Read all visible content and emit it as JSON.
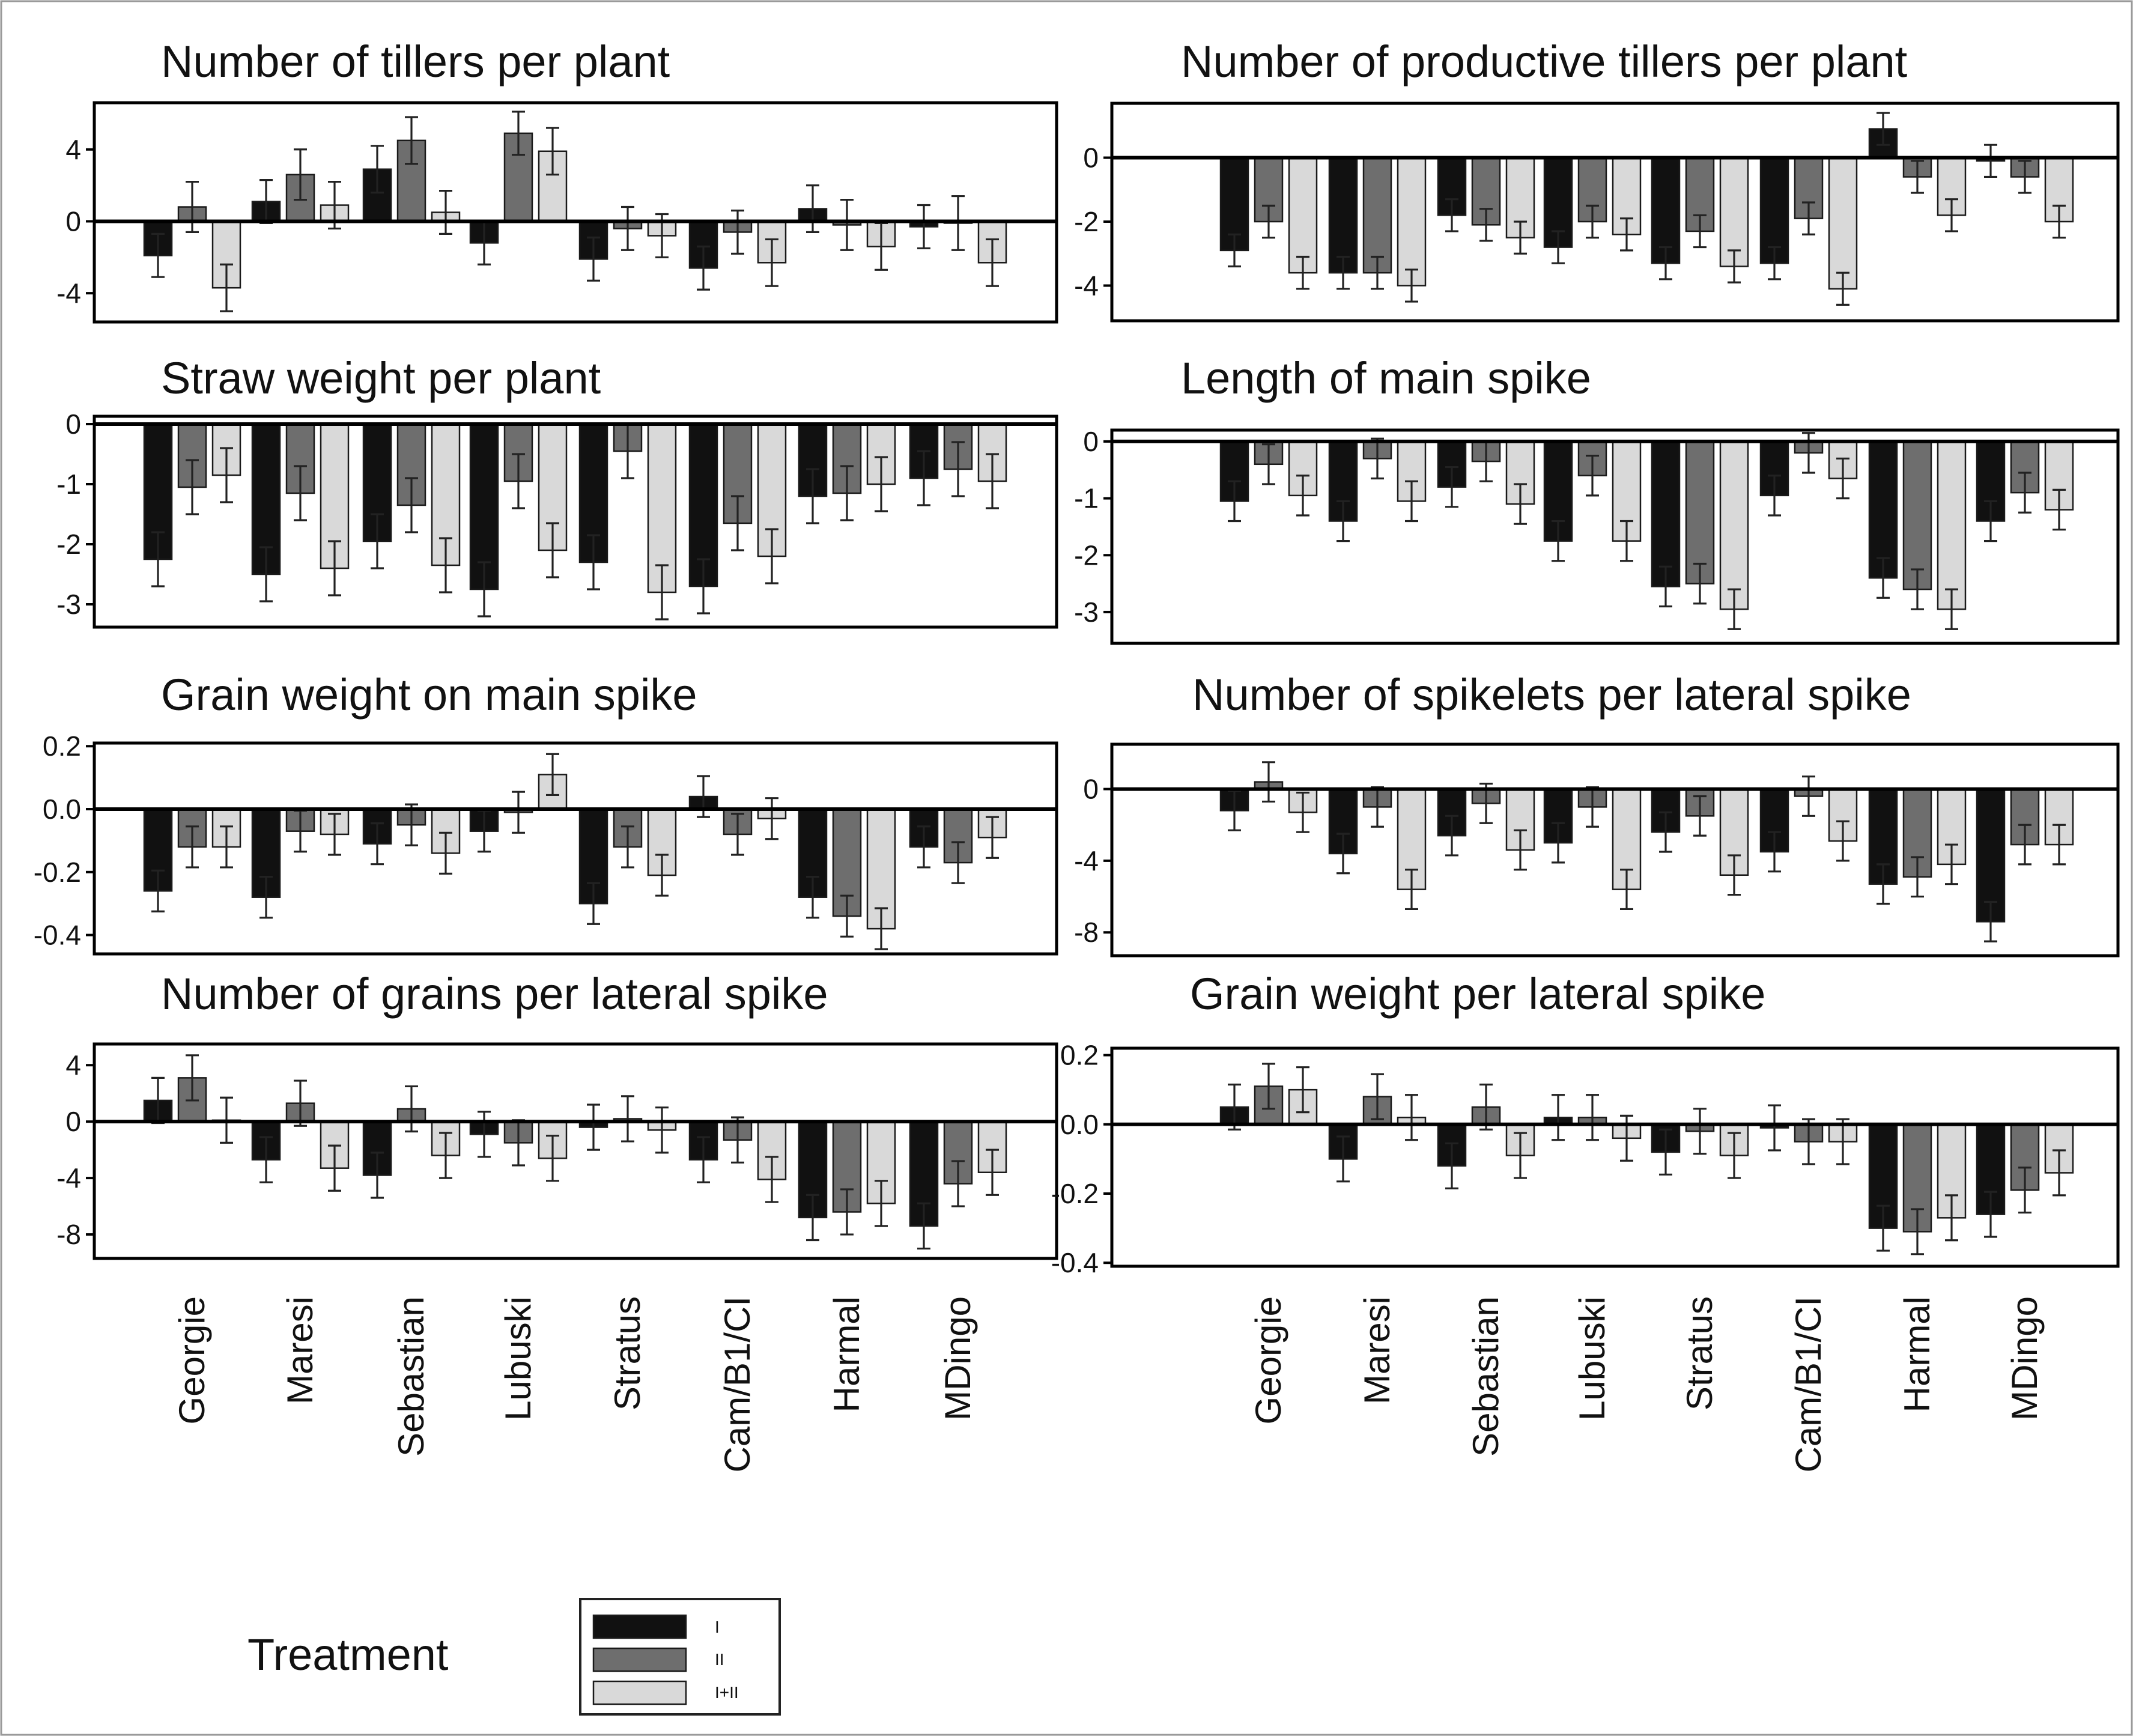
{
  "legend": {
    "title": "Treatment",
    "series": [
      {
        "name": "I",
        "color": "#111111"
      },
      {
        "name": "II",
        "color": "#6e6e6e"
      },
      {
        "name": "I+II",
        "color": "#d9d9d9"
      }
    ]
  },
  "chart_data": [
    {
      "type": "bar",
      "title": "Number of tillers per plant",
      "categories": [
        "Georgie",
        "Maresi",
        "Sebastian",
        "Lubuski",
        "Stratus",
        "Cam/B1/CI",
        "Harmal",
        "MDingo"
      ],
      "ylim": [
        -5.6,
        6.6
      ],
      "yticks": [
        4,
        0,
        -4
      ],
      "tick_labels": [
        "4",
        "0",
        "-4"
      ],
      "series": [
        {
          "name": "I",
          "values": [
            -1.9,
            1.1,
            2.9,
            -1.2,
            -2.1,
            -2.6,
            0.7,
            -0.3
          ],
          "errors": [
            1.2,
            1.2,
            1.3,
            1.2,
            1.2,
            1.2,
            1.3,
            1.2
          ]
        },
        {
          "name": "II",
          "values": [
            0.8,
            2.6,
            4.5,
            4.9,
            -0.4,
            -0.6,
            -0.2,
            -0.1
          ],
          "errors": [
            1.4,
            1.4,
            1.3,
            1.2,
            1.2,
            1.2,
            1.4,
            1.5
          ]
        },
        {
          "name": "I+II",
          "values": [
            -3.7,
            0.9,
            0.5,
            3.9,
            -0.8,
            -2.3,
            -1.4,
            -2.3
          ],
          "errors": [
            1.3,
            1.3,
            1.2,
            1.3,
            1.2,
            1.3,
            1.3,
            1.3
          ]
        }
      ]
    },
    {
      "type": "bar",
      "title": "Number of productive tillers per plant",
      "categories": [
        "Georgie",
        "Maresi",
        "Sebastian",
        "Lubuski",
        "Stratus",
        "Cam/B1/CI",
        "Harmal",
        "MDingo"
      ],
      "ylim": [
        -5.1,
        1.7
      ],
      "yticks": [
        0,
        -2,
        -4
      ],
      "tick_labels": [
        "0",
        "-2",
        "-4"
      ],
      "series": [
        {
          "name": "I",
          "values": [
            -2.9,
            -3.6,
            -1.8,
            -2.8,
            -3.3,
            -3.3,
            0.9,
            -0.1
          ],
          "errors": [
            0.5,
            0.5,
            0.5,
            0.5,
            0.5,
            0.5,
            0.5,
            0.5
          ]
        },
        {
          "name": "II",
          "values": [
            -2.0,
            -3.6,
            -2.1,
            -2.0,
            -2.3,
            -1.9,
            -0.6,
            -0.6
          ],
          "errors": [
            0.5,
            0.5,
            0.5,
            0.5,
            0.5,
            0.5,
            0.5,
            0.5
          ]
        },
        {
          "name": "I+II",
          "values": [
            -3.6,
            -4.0,
            -2.5,
            -2.4,
            -3.4,
            -4.1,
            -1.8,
            -2.0
          ],
          "errors": [
            0.5,
            0.5,
            0.5,
            0.5,
            0.5,
            0.5,
            0.5,
            0.5
          ]
        }
      ]
    },
    {
      "type": "bar",
      "title": "Straw weight per plant",
      "categories": [
        "Georgie",
        "Maresi",
        "Sebastian",
        "Lubuski",
        "Stratus",
        "Cam/B1/CI",
        "Harmal",
        "MDingo"
      ],
      "ylim": [
        -3.38,
        0.13
      ],
      "yticks": [
        0,
        -1,
        -2,
        -3
      ],
      "tick_labels": [
        "0",
        "-1",
        "-2",
        "-3"
      ],
      "series": [
        {
          "name": "I",
          "values": [
            -2.25,
            -2.5,
            -1.95,
            -2.75,
            -2.3,
            -2.7,
            -1.2,
            -0.9
          ],
          "errors": [
            0.45,
            0.45,
            0.45,
            0.45,
            0.45,
            0.45,
            0.45,
            0.45
          ]
        },
        {
          "name": "II",
          "values": [
            -1.05,
            -1.15,
            -1.35,
            -0.95,
            -0.45,
            -1.65,
            -1.15,
            -0.75
          ],
          "errors": [
            0.45,
            0.45,
            0.45,
            0.45,
            0.45,
            0.45,
            0.45,
            0.45
          ]
        },
        {
          "name": "I+II",
          "values": [
            -0.85,
            -2.4,
            -2.35,
            -2.1,
            -2.8,
            -2.2,
            -1.0,
            -0.95
          ],
          "errors": [
            0.45,
            0.45,
            0.45,
            0.45,
            0.45,
            0.45,
            0.45,
            0.45
          ]
        }
      ]
    },
    {
      "type": "bar",
      "title": "Length of main spike",
      "categories": [
        "Georgie",
        "Maresi",
        "Sebastian",
        "Lubuski",
        "Stratus",
        "Cam/B1/CI",
        "Harmal",
        "MDingo"
      ],
      "ylim": [
        -3.55,
        0.2
      ],
      "yticks": [
        0,
        -1,
        -2,
        -3
      ],
      "tick_labels": [
        "0",
        "-1",
        "-2",
        "-3"
      ],
      "series": [
        {
          "name": "I",
          "values": [
            -1.05,
            -1.4,
            -0.8,
            -1.75,
            -2.55,
            -0.95,
            -2.4,
            -1.4
          ],
          "errors": [
            0.35,
            0.35,
            0.35,
            0.35,
            0.35,
            0.35,
            0.35,
            0.35
          ]
        },
        {
          "name": "II",
          "values": [
            -0.4,
            -0.3,
            -0.35,
            -0.6,
            -2.5,
            -0.2,
            -2.6,
            -0.9
          ],
          "errors": [
            0.35,
            0.35,
            0.35,
            0.35,
            0.35,
            0.35,
            0.35,
            0.35
          ]
        },
        {
          "name": "I+II",
          "values": [
            -0.95,
            -1.05,
            -1.1,
            -1.75,
            -2.95,
            -0.65,
            -2.95,
            -1.2
          ],
          "errors": [
            0.35,
            0.35,
            0.35,
            0.35,
            0.35,
            0.35,
            0.35,
            0.35
          ]
        }
      ]
    },
    {
      "type": "bar",
      "title": "Grain weight on main spike",
      "categories": [
        "Georgie",
        "Maresi",
        "Sebastian",
        "Lubuski",
        "Stratus",
        "Cam/B1/CI",
        "Harmal",
        "MDingo"
      ],
      "ylim": [
        -0.46,
        0.21
      ],
      "yticks": [
        0.2,
        0.0,
        -0.2,
        -0.4
      ],
      "tick_labels": [
        "0.2",
        "0.0",
        "-0.2",
        "-0.4"
      ],
      "series": [
        {
          "name": "I",
          "values": [
            -0.26,
            -0.28,
            -0.11,
            -0.07,
            -0.3,
            0.04,
            -0.28,
            -0.12
          ],
          "errors": [
            0.065,
            0.065,
            0.065,
            0.065,
            0.065,
            0.065,
            0.065,
            0.065
          ]
        },
        {
          "name": "II",
          "values": [
            -0.12,
            -0.07,
            -0.05,
            -0.01,
            -0.12,
            -0.08,
            -0.34,
            -0.17
          ],
          "errors": [
            0.065,
            0.065,
            0.065,
            0.065,
            0.065,
            0.065,
            0.065,
            0.065
          ]
        },
        {
          "name": "I+II",
          "values": [
            -0.12,
            -0.08,
            -0.14,
            0.11,
            -0.21,
            -0.03,
            -0.38,
            -0.09
          ],
          "errors": [
            0.065,
            0.065,
            0.065,
            0.065,
            0.065,
            0.065,
            0.065,
            0.065
          ]
        }
      ]
    },
    {
      "type": "bar",
      "title": "Number of spikelets per lateral spike",
      "categories": [
        "Georgie",
        "Maresi",
        "Sebastian",
        "Lubuski",
        "Stratus",
        "Cam/B1/CI",
        "Harmal",
        "MDingo"
      ],
      "ylim": [
        -9.3,
        2.5
      ],
      "yticks": [
        0,
        -4,
        -8
      ],
      "tick_labels": [
        "0",
        "-4",
        "-8"
      ],
      "series": [
        {
          "name": "I",
          "values": [
            -1.2,
            -3.6,
            -2.6,
            -3.0,
            -2.4,
            -3.5,
            -5.3,
            -7.4
          ],
          "errors": [
            1.1,
            1.1,
            1.1,
            1.1,
            1.1,
            1.1,
            1.1,
            1.1
          ]
        },
        {
          "name": "II",
          "values": [
            0.4,
            -1.0,
            -0.8,
            -1.0,
            -1.5,
            -0.4,
            -4.9,
            -3.1
          ],
          "errors": [
            1.1,
            1.1,
            1.1,
            1.1,
            1.1,
            1.1,
            1.1,
            1.1
          ]
        },
        {
          "name": "I+II",
          "values": [
            -1.3,
            -5.6,
            -3.4,
            -5.6,
            -4.8,
            -2.9,
            -4.2,
            -3.1
          ],
          "errors": [
            1.1,
            1.1,
            1.1,
            1.1,
            1.1,
            1.1,
            1.1,
            1.1
          ]
        }
      ]
    },
    {
      "type": "bar",
      "title": "Number of grains per lateral spike",
      "categories": [
        "Georgie",
        "Maresi",
        "Sebastian",
        "Lubuski",
        "Stratus",
        "Cam/B1/CI",
        "Harmal",
        "MDingo"
      ],
      "ylim": [
        -9.7,
        5.5
      ],
      "yticks": [
        4,
        0,
        -4,
        -8
      ],
      "tick_labels": [
        "4",
        "0",
        "-4",
        "-8"
      ],
      "series": [
        {
          "name": "I",
          "values": [
            1.5,
            -2.7,
            -3.8,
            -0.9,
            -0.4,
            -2.7,
            -6.8,
            -7.4
          ],
          "errors": [
            1.6,
            1.6,
            1.6,
            1.6,
            1.6,
            1.6,
            1.6,
            1.6
          ]
        },
        {
          "name": "II",
          "values": [
            3.1,
            1.3,
            0.9,
            -1.5,
            0.2,
            -1.3,
            -6.4,
            -4.4
          ],
          "errors": [
            1.6,
            1.6,
            1.6,
            1.6,
            1.6,
            1.6,
            1.6,
            1.6
          ]
        },
        {
          "name": "I+II",
          "values": [
            0.1,
            -3.3,
            -2.4,
            -2.6,
            -0.6,
            -4.1,
            -5.8,
            -3.6
          ],
          "errors": [
            1.6,
            1.6,
            1.6,
            1.6,
            1.6,
            1.6,
            1.6,
            1.6
          ]
        }
      ]
    },
    {
      "type": "bar",
      "title": "Grain weight per lateral spike",
      "categories": [
        "Georgie",
        "Maresi",
        "Sebastian",
        "Lubuski",
        "Stratus",
        "Cam/B1/CI",
        "Harmal",
        "MDingo"
      ],
      "ylim": [
        -0.41,
        0.22
      ],
      "yticks": [
        0.2,
        0.0,
        -0.2,
        -0.4
      ],
      "tick_labels": [
        "0.2",
        "0.0",
        "-0.2",
        "-0.4"
      ],
      "series": [
        {
          "name": "I",
          "values": [
            0.05,
            -0.1,
            -0.12,
            0.02,
            -0.08,
            -0.01,
            -0.3,
            -0.26
          ],
          "errors": [
            0.065,
            0.065,
            0.065,
            0.065,
            0.065,
            0.065,
            0.065,
            0.065
          ]
        },
        {
          "name": "II",
          "values": [
            0.11,
            0.08,
            0.05,
            0.02,
            -0.02,
            -0.05,
            -0.31,
            -0.19
          ],
          "errors": [
            0.065,
            0.065,
            0.065,
            0.065,
            0.065,
            0.065,
            0.065,
            0.065
          ]
        },
        {
          "name": "I+II",
          "values": [
            0.1,
            0.02,
            -0.09,
            -0.04,
            -0.09,
            -0.05,
            -0.27,
            -0.14
          ],
          "errors": [
            0.065,
            0.065,
            0.065,
            0.065,
            0.065,
            0.065,
            0.065,
            0.065
          ]
        }
      ]
    }
  ]
}
